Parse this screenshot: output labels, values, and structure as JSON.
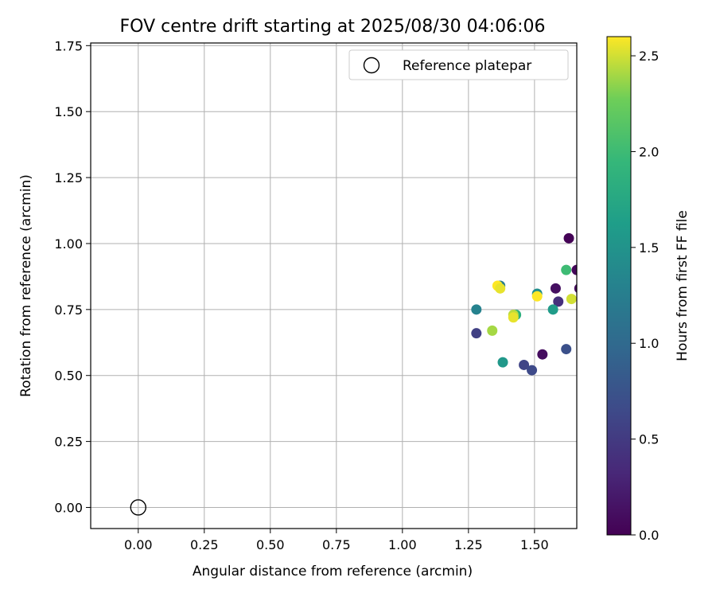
{
  "chart_data": {
    "type": "scatter",
    "title": "FOV centre drift starting at 2025/08/30 04:06:06",
    "xlabel": "Angular distance from reference (arcmin)",
    "ylabel": "Rotation from reference (arcmin)",
    "xlim": [
      -0.18,
      1.66
    ],
    "ylim": [
      -0.08,
      1.76
    ],
    "x_ticks": [
      "0.00",
      "0.25",
      "0.50",
      "0.75",
      "1.00",
      "1.25",
      "1.50"
    ],
    "x_tick_values": [
      0,
      0.25,
      0.5,
      0.75,
      1.0,
      1.25,
      1.5
    ],
    "y_ticks": [
      "0.00",
      "0.25",
      "0.50",
      "0.75",
      "1.00",
      "1.25",
      "1.50",
      "1.75"
    ],
    "y_tick_values": [
      0,
      0.25,
      0.5,
      0.75,
      1.0,
      1.25,
      1.5,
      1.75
    ],
    "grid": true,
    "legend": {
      "placement": "top-right",
      "entries": [
        "Reference platepar"
      ]
    },
    "reference_point": {
      "x": 0.0,
      "y": 0.0
    },
    "colorbar": {
      "label": "Hours from first FF file",
      "range": [
        0,
        2.6
      ],
      "colormap": "viridis",
      "ticks": [
        "0.0",
        "0.5",
        "1.0",
        "1.5",
        "2.0",
        "2.5"
      ],
      "tick_values": [
        0,
        0.5,
        1.0,
        1.5,
        2.0,
        2.5
      ]
    },
    "points": [
      {
        "x": 1.63,
        "y": 1.02,
        "t": 0.02
      },
      {
        "x": 1.66,
        "y": 0.9,
        "t": 0.05
      },
      {
        "x": 1.67,
        "y": 0.83,
        "t": 0.08
      },
      {
        "x": 1.58,
        "y": 0.83,
        "t": 0.12
      },
      {
        "x": 1.53,
        "y": 0.58,
        "t": 0.1
      },
      {
        "x": 1.59,
        "y": 0.78,
        "t": 0.4
      },
      {
        "x": 1.28,
        "y": 0.66,
        "t": 0.55
      },
      {
        "x": 1.46,
        "y": 0.54,
        "t": 0.6
      },
      {
        "x": 1.49,
        "y": 0.52,
        "t": 0.65
      },
      {
        "x": 1.62,
        "y": 0.6,
        "t": 0.72
      },
      {
        "x": 1.28,
        "y": 0.75,
        "t": 1.3
      },
      {
        "x": 1.37,
        "y": 0.84,
        "t": 1.25
      },
      {
        "x": 1.51,
        "y": 0.81,
        "t": 1.45
      },
      {
        "x": 1.38,
        "y": 0.55,
        "t": 1.55
      },
      {
        "x": 1.57,
        "y": 0.75,
        "t": 1.6
      },
      {
        "x": 1.43,
        "y": 0.73,
        "t": 1.85
      },
      {
        "x": 1.62,
        "y": 0.9,
        "t": 2.0
      },
      {
        "x": 1.34,
        "y": 0.67,
        "t": 2.4
      },
      {
        "x": 1.36,
        "y": 0.84,
        "t": 2.6
      },
      {
        "x": 1.37,
        "y": 0.83,
        "t": 2.55
      },
      {
        "x": 1.42,
        "y": 0.73,
        "t": 2.45
      },
      {
        "x": 1.42,
        "y": 0.72,
        "t": 2.55
      },
      {
        "x": 1.51,
        "y": 0.8,
        "t": 2.6
      },
      {
        "x": 1.64,
        "y": 0.79,
        "t": 2.5
      }
    ]
  }
}
